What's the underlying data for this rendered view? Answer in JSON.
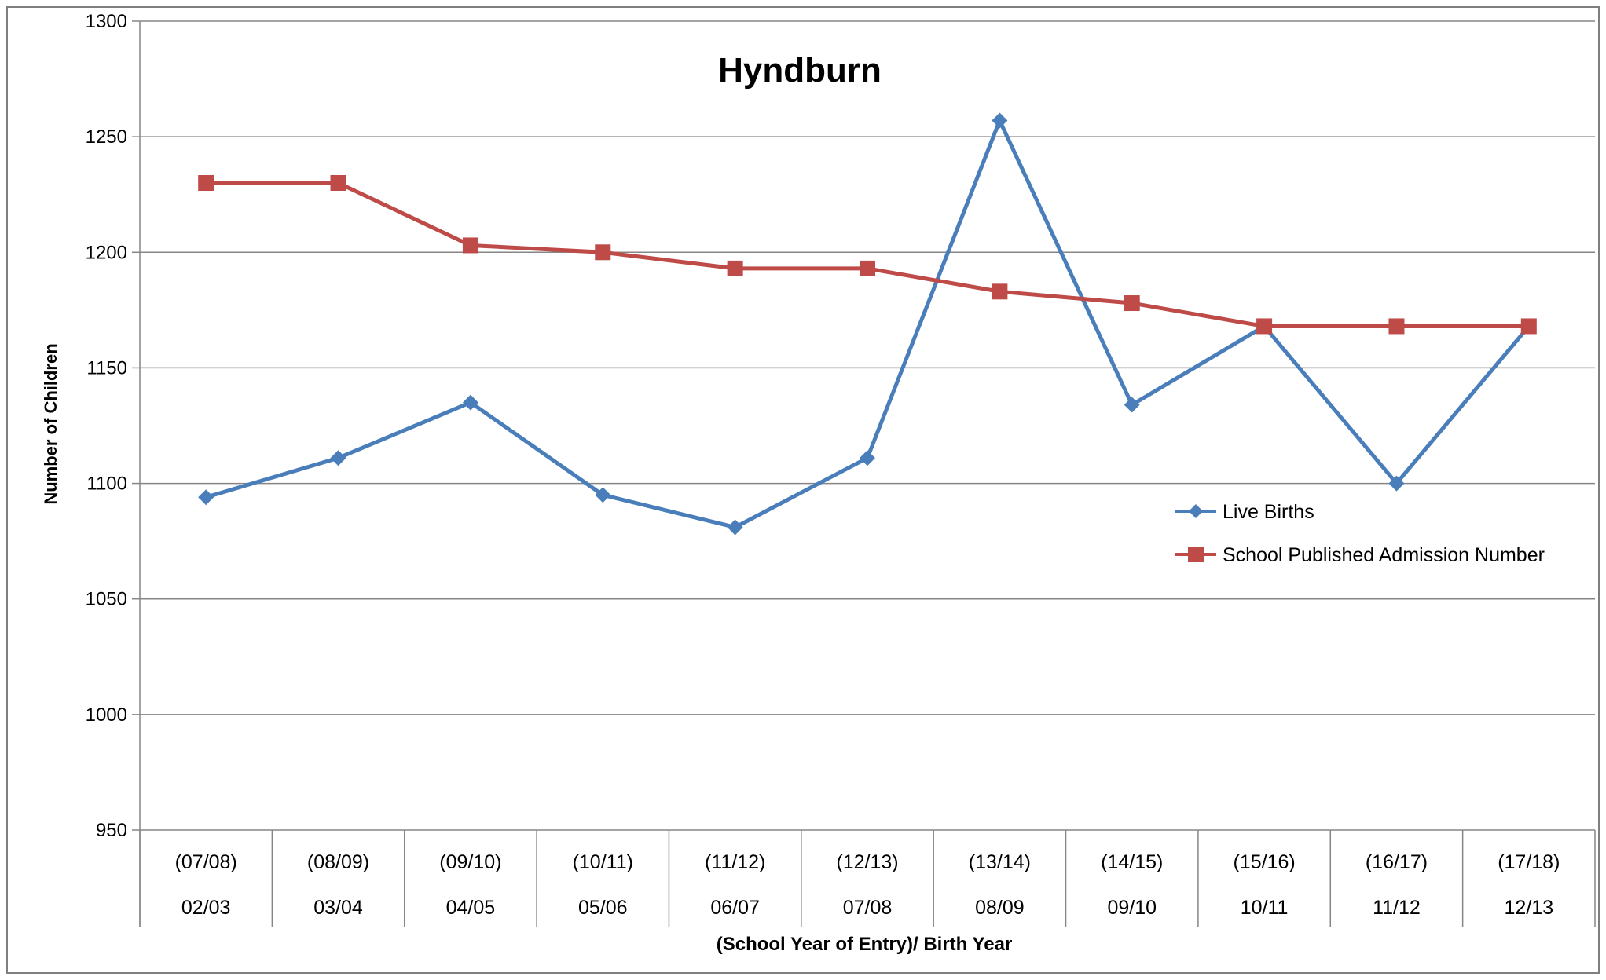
{
  "chart_data": {
    "type": "line",
    "title": "Hyndburn",
    "xlabel": "(School Year of Entry)/ Birth Year",
    "ylabel": "Number of Children",
    "ylim": [
      950,
      1300
    ],
    "yticks": [
      950,
      1000,
      1050,
      1100,
      1150,
      1200,
      1250,
      1300
    ],
    "categories_top": [
      "(07/08)",
      "(08/09)",
      "(09/10)",
      "(10/11)",
      "(11/12)",
      "(12/13)",
      "(13/14)",
      "(14/15)",
      "(15/16)",
      "(16/17)",
      "(17/18)"
    ],
    "categories": [
      "02/03",
      "03/04",
      "04/05",
      "05/06",
      "06/07",
      "07/08",
      "08/09",
      "09/10",
      "10/11",
      "11/12",
      "12/13"
    ],
    "grid": true,
    "legend_position": "right",
    "series": [
      {
        "name": "Live Births",
        "color": "#4a7ebb",
        "marker": "diamond",
        "values": [
          1094,
          1111,
          1135,
          1095,
          1081,
          1111,
          1257,
          1134,
          1168,
          1100,
          1168
        ]
      },
      {
        "name": "School Published Admission Number",
        "color": "#be4b48",
        "marker": "square",
        "values": [
          1230,
          1230,
          1203,
          1200,
          1193,
          1193,
          1183,
          1178,
          1168,
          1168,
          1168
        ]
      }
    ]
  }
}
